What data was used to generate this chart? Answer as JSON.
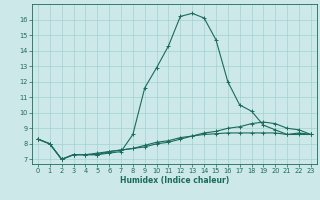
{
  "xlabel": "Humidex (Indice chaleur)",
  "xlim_min": -0.5,
  "xlim_max": 23.5,
  "ylim_min": 6.7,
  "ylim_max": 17.0,
  "yticks": [
    7,
    8,
    9,
    10,
    11,
    12,
    13,
    14,
    15,
    16
  ],
  "xticks": [
    0,
    1,
    2,
    3,
    4,
    5,
    6,
    7,
    8,
    9,
    10,
    11,
    12,
    13,
    14,
    15,
    16,
    17,
    18,
    19,
    20,
    21,
    22,
    23
  ],
  "background_color": "#cce8e8",
  "grid_color": "#99cccc",
  "line_color": "#1a6b5a",
  "line1_x": [
    0,
    1,
    2,
    3,
    4,
    5,
    6,
    7,
    8,
    9,
    10,
    11,
    12,
    13,
    14,
    15,
    16,
    17,
    18,
    19,
    20,
    21,
    22,
    23
  ],
  "line1_y": [
    8.3,
    8.0,
    7.0,
    7.3,
    7.3,
    7.3,
    7.4,
    7.5,
    8.6,
    11.6,
    12.9,
    14.3,
    16.2,
    16.4,
    16.1,
    14.7,
    12.0,
    10.5,
    10.1,
    9.2,
    8.9,
    8.6,
    8.7,
    8.6
  ],
  "line2_x": [
    0,
    1,
    2,
    3,
    4,
    5,
    6,
    7,
    8,
    9,
    10,
    11,
    12,
    13,
    14,
    15,
    16,
    17,
    18,
    19,
    20,
    21,
    22,
    23
  ],
  "line2_y": [
    8.3,
    8.0,
    7.0,
    7.3,
    7.3,
    7.3,
    7.5,
    7.6,
    7.7,
    7.8,
    8.0,
    8.1,
    8.3,
    8.5,
    8.7,
    8.8,
    9.0,
    9.1,
    9.3,
    9.4,
    9.3,
    9.0,
    8.9,
    8.6
  ],
  "line3_x": [
    0,
    1,
    2,
    3,
    4,
    5,
    6,
    7,
    8,
    9,
    10,
    11,
    12,
    13,
    14,
    15,
    16,
    17,
    18,
    19,
    20,
    21,
    22,
    23
  ],
  "line3_y": [
    8.3,
    8.0,
    7.0,
    7.3,
    7.3,
    7.4,
    7.5,
    7.6,
    7.7,
    7.9,
    8.1,
    8.2,
    8.4,
    8.5,
    8.6,
    8.65,
    8.7,
    8.7,
    8.7,
    8.7,
    8.7,
    8.6,
    8.6,
    8.6
  ],
  "xlabel_fontsize": 5.5,
  "tick_fontsize": 4.8,
  "linewidth": 0.8,
  "markersize": 2.5,
  "markeredgewidth": 0.7
}
